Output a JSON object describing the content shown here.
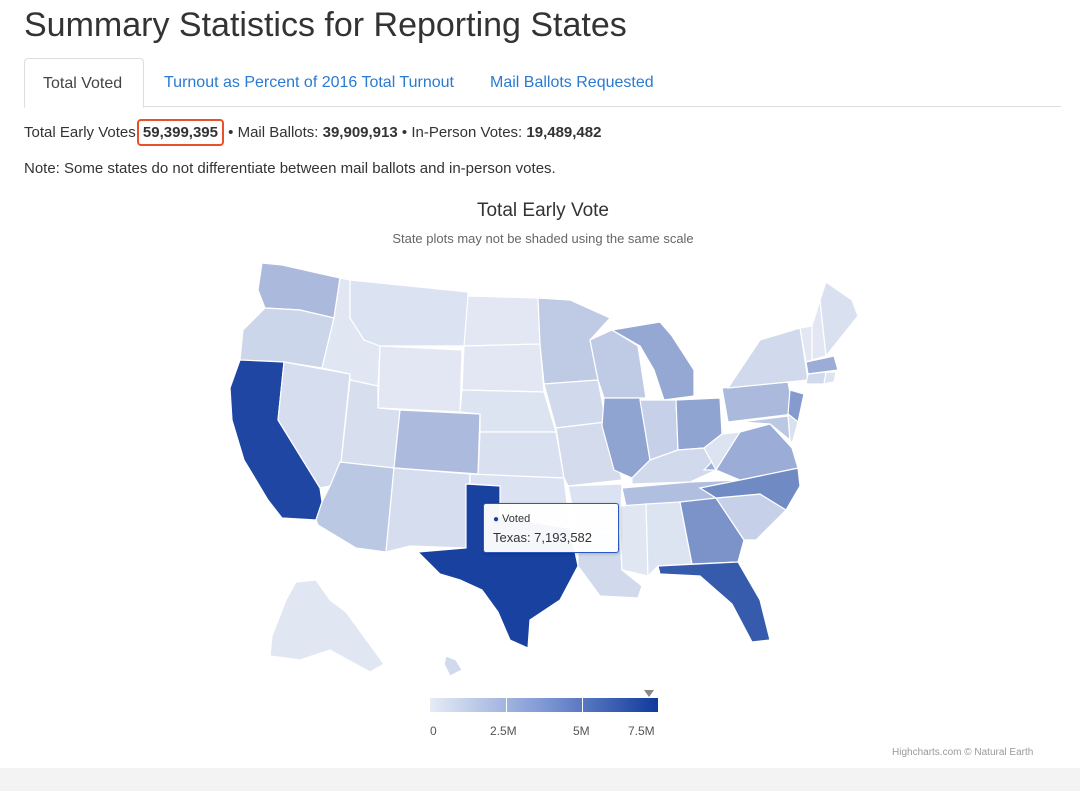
{
  "page": {
    "title": "Summary Statistics for Reporting States"
  },
  "tabs": [
    {
      "label": "Total Voted"
    },
    {
      "label": "Turnout as Percent of 2016 Total Turnout"
    },
    {
      "label": "Mail Ballots Requested"
    }
  ],
  "stats": {
    "total_label": "Total Early Votes:",
    "total_value": "59,399,395",
    "sep": "•",
    "mail_label": "Mail Ballots:",
    "mail_value": "39,909,913",
    "inperson_label": "In-Person Votes:",
    "inperson_value": "19,489,482"
  },
  "note": "Note: Some states do not differentiate between mail ballots and in-person votes.",
  "chart": {
    "title": "Total Early Vote",
    "subtitle": "State plots may not be shaded using the same scale",
    "tooltip": {
      "series": "Voted",
      "text": "Texas: 7,193,582"
    },
    "legend_ticks": [
      "0",
      "2.5M",
      "5M",
      "7.5M"
    ],
    "credits": "Highcharts.com © Natural Earth"
  },
  "chart_data": {
    "type": "choropleth",
    "title": "Total Early Vote",
    "subtitle": "State plots may not be shaded using the same scale",
    "series_name": "Voted",
    "color_range": [
      0,
      7500000
    ],
    "color_min": "#e6ebf5",
    "color_max": "#0f3a9c",
    "highlighted": {
      "state": "Texas",
      "value": 7193582
    },
    "states": [
      {
        "state": "Washington",
        "level": 0.28
      },
      {
        "state": "Oregon",
        "level": 0.12
      },
      {
        "state": "California",
        "level": 0.93
      },
      {
        "state": "Nevada",
        "level": 0.08
      },
      {
        "state": "Idaho",
        "level": 0.03
      },
      {
        "state": "Montana",
        "level": 0.05
      },
      {
        "state": "Wyoming",
        "level": 0.02
      },
      {
        "state": "Utah",
        "level": 0.07
      },
      {
        "state": "Arizona",
        "level": 0.2
      },
      {
        "state": "Colorado",
        "level": 0.27
      },
      {
        "state": "New Mexico",
        "level": 0.08
      },
      {
        "state": "North Dakota",
        "level": 0.02
      },
      {
        "state": "South Dakota",
        "level": 0.02
      },
      {
        "state": "Nebraska",
        "level": 0.04
      },
      {
        "state": "Kansas",
        "level": 0.06
      },
      {
        "state": "Oklahoma",
        "level": 0.05
      },
      {
        "state": "Texas",
        "level": 0.96
      },
      {
        "state": "Minnesota",
        "level": 0.18
      },
      {
        "state": "Iowa",
        "level": 0.1
      },
      {
        "state": "Missouri",
        "level": 0.09
      },
      {
        "state": "Arkansas",
        "level": 0.05
      },
      {
        "state": "Louisiana",
        "level": 0.1
      },
      {
        "state": "Wisconsin",
        "level": 0.18
      },
      {
        "state": "Illinois",
        "level": 0.4
      },
      {
        "state": "Michigan",
        "level": 0.38
      },
      {
        "state": "Indiana",
        "level": 0.15
      },
      {
        "state": "Ohio",
        "level": 0.4
      },
      {
        "state": "Kentucky",
        "level": 0.1
      },
      {
        "state": "Tennessee",
        "level": 0.25
      },
      {
        "state": "Mississippi",
        "level": 0.03
      },
      {
        "state": "Alabama",
        "level": 0.04
      },
      {
        "state": "Georgia",
        "level": 0.5
      },
      {
        "state": "Florida",
        "level": 0.82
      },
      {
        "state": "South Carolina",
        "level": 0.15
      },
      {
        "state": "North Carolina",
        "level": 0.55
      },
      {
        "state": "Virginia",
        "level": 0.35
      },
      {
        "state": "West Virginia",
        "level": 0.04
      },
      {
        "state": "Pennsylvania",
        "level": 0.28
      },
      {
        "state": "New York",
        "level": 0.1
      },
      {
        "state": "New Jersey",
        "level": 0.45
      },
      {
        "state": "Maryland",
        "level": 0.2
      },
      {
        "state": "Delaware",
        "level": 0.06
      },
      {
        "state": "Vermont",
        "level": 0.02
      },
      {
        "state": "New Hampshire",
        "level": 0.02
      },
      {
        "state": "Maine",
        "level": 0.06
      },
      {
        "state": "Massachusetts",
        "level": 0.35
      },
      {
        "state": "Connecticut",
        "level": 0.1
      },
      {
        "state": "Rhode Island",
        "level": 0.04
      },
      {
        "state": "Alaska",
        "level": 0.03
      },
      {
        "state": "Hawaii",
        "level": 0.1
      }
    ]
  }
}
